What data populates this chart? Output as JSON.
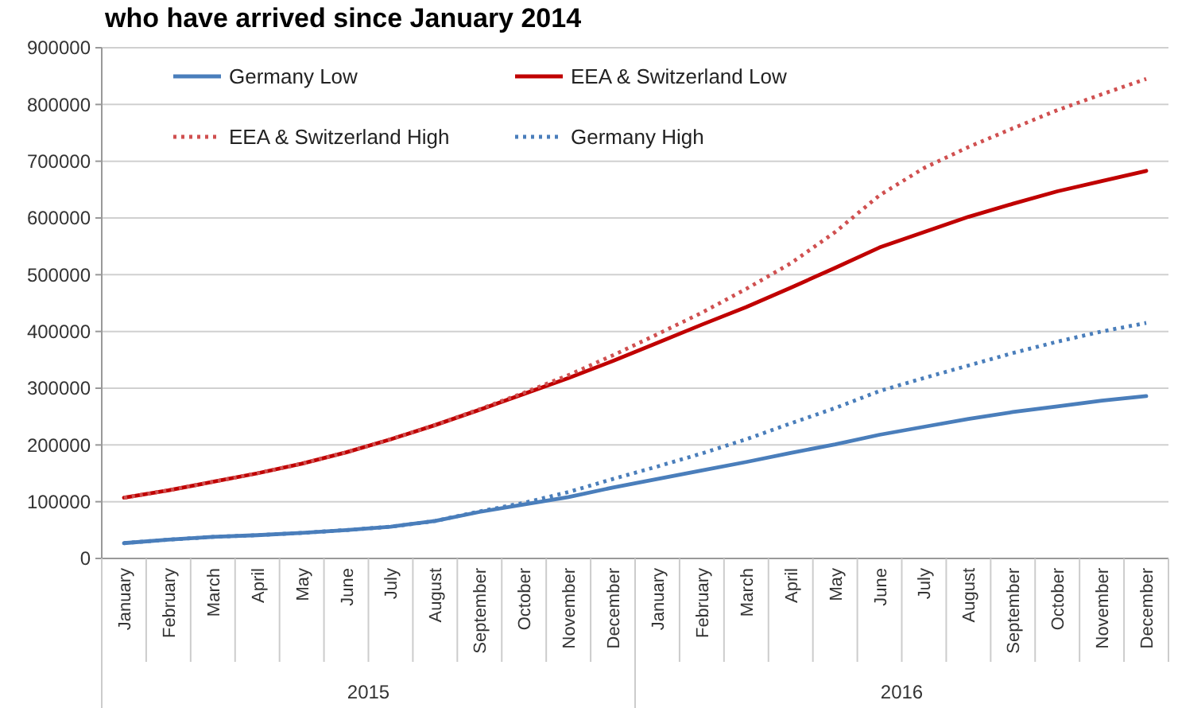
{
  "chart_data": {
    "type": "line",
    "title": "who have arrived since January 2014",
    "categories": [
      "January",
      "February",
      "March",
      "April",
      "May",
      "June",
      "July",
      "August",
      "September",
      "October",
      "November",
      "December",
      "January",
      "February",
      "March",
      "April",
      "May",
      "June",
      "July",
      "August",
      "September",
      "October",
      "November",
      "December"
    ],
    "annotations": [
      "2015",
      "2016"
    ],
    "ylim": [
      0,
      900000
    ],
    "yticks": [
      0,
      100000,
      200000,
      300000,
      400000,
      500000,
      600000,
      700000,
      800000,
      900000
    ],
    "grid": "y",
    "legend": "top left",
    "series": [
      {
        "name": "Germany Low",
        "color": "#4a7ebb",
        "line_style": "solid",
        "values": [
          27000,
          33000,
          38000,
          41000,
          45000,
          50000,
          56000,
          66000,
          82000,
          95000,
          108000,
          125000,
          140000,
          155000,
          170000,
          186000,
          201000,
          218000,
          232000,
          246000,
          258000,
          268000,
          278000,
          286000
        ]
      },
      {
        "name": "EEA & Switzerland Low",
        "color": "#c00000",
        "line_style": "solid",
        "values": [
          107000,
          120000,
          135000,
          150000,
          167000,
          187000,
          210000,
          235000,
          262000,
          290000,
          318000,
          348000,
          380000,
          412000,
          443000,
          477000,
          512000,
          548000,
          575000,
          602000,
          625000,
          647000,
          665000,
          683000
        ]
      },
      {
        "name": "EEA & Switzerland High",
        "color": "#d05050",
        "line_style": "dotted",
        "values": [
          107000,
          120000,
          135000,
          150000,
          167000,
          187000,
          210000,
          235000,
          263000,
          292000,
          323000,
          358000,
          395000,
          433000,
          475000,
          520000,
          575000,
          640000,
          688000,
          725000,
          758000,
          790000,
          818000,
          845000
        ]
      },
      {
        "name": "Germany High",
        "color": "#4a7ebb",
        "line_style": "dotted",
        "values": [
          27000,
          33000,
          38000,
          41000,
          45000,
          50000,
          56000,
          66000,
          83000,
          98000,
          117000,
          140000,
          162000,
          185000,
          210000,
          238000,
          265000,
          295000,
          318000,
          340000,
          362000,
          382000,
          400000,
          415000
        ]
      }
    ]
  }
}
